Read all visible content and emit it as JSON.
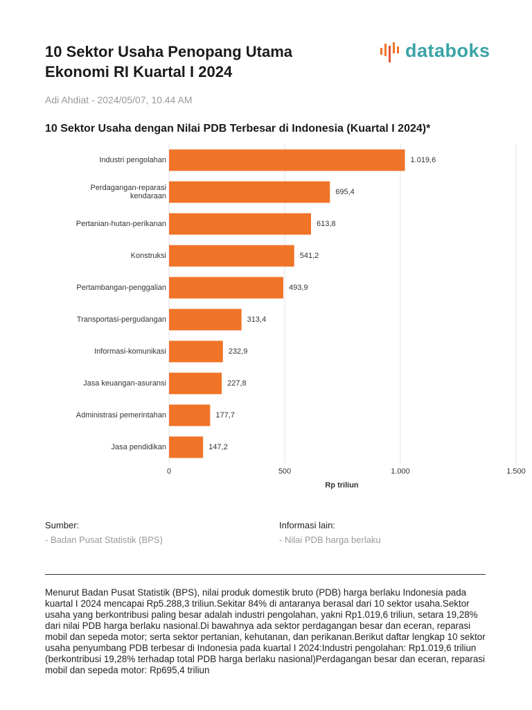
{
  "header": {
    "title": "10 Sektor Usaha Penopang Utama Ekonomi RI Kuartal I 2024",
    "logo": "databoks",
    "byline": "Adi Ahdiat - 2024/05/07, 10.44 AM"
  },
  "chart_data": {
    "type": "barh",
    "title": "10 Sektor Usaha dengan Nilai PDB Terbesar di Indonesia (Kuartal I 2024)*",
    "categories": [
      "Industri pengolahan",
      "Perdagangan-reparasi kendaraan",
      "Pertanian-hutan-perikanan",
      "Konstruksi",
      "Pertambangan-penggalian",
      "Transportasi-pergudangan",
      "Informasi-komunikasi",
      "Jasa keuangan-asuransi",
      "Administrasi pemerintahan",
      "Jasa pendidikan"
    ],
    "values": [
      1019.6,
      695.4,
      613.8,
      541.2,
      493.9,
      313.4,
      232.9,
      227.8,
      177.7,
      147.2
    ],
    "value_labels": [
      "1.019,6",
      "695,4",
      "613,8",
      "541,2",
      "493,9",
      "313,4",
      "232,9",
      "227,8",
      "177,7",
      "147,2"
    ],
    "color": "#f07428",
    "xlabel": "Rp triliun",
    "xlim": [
      0,
      1500
    ],
    "xticks": [
      0,
      500,
      {
        "value": 1000,
        "label": "1.000"
      },
      {
        "value": 1500,
        "label": "1.500"
      }
    ],
    "grid": true
  },
  "source": {
    "heading": "Sumber:",
    "text": "- Badan Pusat Statistik (BPS)"
  },
  "info": {
    "heading": "Informasi lain:",
    "text": "- Nilai PDB harga berlaku"
  },
  "body": "Menurut Badan Pusat Statistik (BPS), nilai produk domestik bruto (PDB) harga berlaku Indonesia pada kuartal I 2024 mencapai Rp5.288,3 triliun.Sekitar 84% di antaranya berasal dari 10 sektor usaha.Sektor usaha yang berkontribusi paling besar adalah industri pengolahan, yakni Rp1.019,6 triliun, setara 19,28% dari nilai PDB harga berlaku nasional.Di bawahnya ada sektor perdagangan besar dan eceran, reparasi mobil dan sepeda motor; serta sektor pertanian, kehutanan, dan perikanan.Berikut daftar lengkap 10 sektor usaha penyumbang PDB terbesar di Indonesia pada kuartal I 2024:Industri pengolahan: Rp1.019,6 triliun (berkontribusi 19,28% terhadap total PDB harga berlaku nasional)Perdagangan besar dan eceran, reparasi mobil dan sepeda motor: Rp695,4 triliun"
}
